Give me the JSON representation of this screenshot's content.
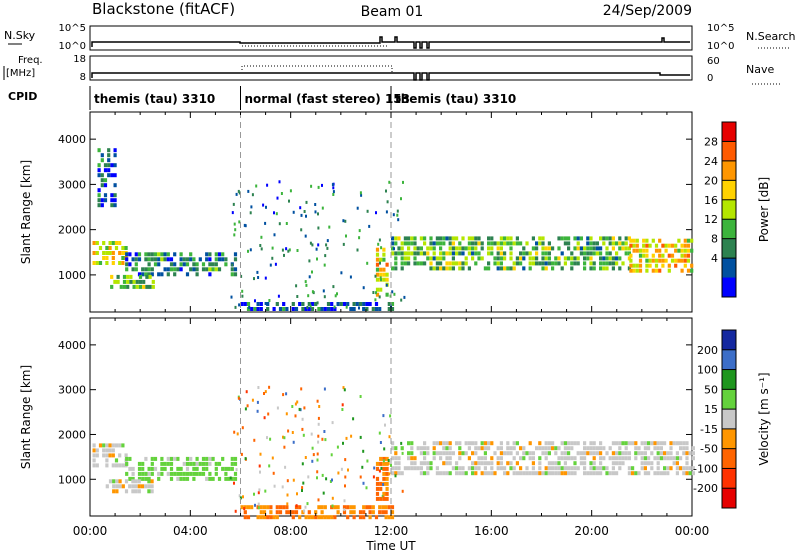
{
  "header": {
    "title": "Blackstone (fitACF)",
    "beam": "Beam 01",
    "date": "24/Sep/2009"
  },
  "side_labels": {
    "nsky": "N.Sky",
    "freq": "Freq.",
    "freq_unit": "[MHz]",
    "cpid": "CPID",
    "nsearch": "N.Search",
    "nave": "Nave"
  },
  "noise_axis": {
    "left_ticks": [
      "10^5",
      "10^0"
    ],
    "right_ticks": [
      "10^5",
      "10^0"
    ]
  },
  "freq_axis": {
    "left_ticks": [
      "18",
      "8"
    ],
    "right_ticks": [
      "60",
      "0"
    ]
  },
  "cpid_segments": [
    {
      "label": "themis (tau) 3310",
      "start_hour": 0,
      "end_hour": 6
    },
    {
      "label": "normal (fast stereo) 153",
      "start_hour": 6,
      "end_hour": 12
    },
    {
      "label": "themis (tau) 3310",
      "start_hour": 12,
      "end_hour": 24
    }
  ],
  "chart_data": [
    {
      "type": "heatmap",
      "title": "",
      "xlabel": "",
      "ylabel": "Slant Range [km]",
      "xlim": [
        0,
        24
      ],
      "ylim": [
        180,
        4600
      ],
      "yticks": [
        1000,
        2000,
        3000,
        4000
      ],
      "colorbar": {
        "label": "Power [dB]",
        "ticks": [
          "28",
          "24",
          "20",
          "16",
          "12",
          "8",
          "4"
        ],
        "colors": [
          "#e60000",
          "#ff5a00",
          "#ff9600",
          "#ffd200",
          "#b4e600",
          "#3cb43c",
          "#2d8250",
          "#0050a0",
          "#0000ff"
        ]
      },
      "regions": [
        {
          "hour_start": 0.1,
          "hour_end": 1.4,
          "range_start": 1300,
          "range_end": 1750,
          "dB": 20
        },
        {
          "hour_start": 1.4,
          "hour_end": 5.8,
          "range_start": 1050,
          "range_end": 1500,
          "dB": 10
        },
        {
          "hour_start": 0.8,
          "hour_end": 2.5,
          "range_start": 700,
          "range_end": 1000,
          "dB": 16
        },
        {
          "hour_start": 0.3,
          "hour_end": 1.0,
          "range_start": 2500,
          "range_end": 3800,
          "dB": 6
        },
        {
          "hour_start": 11.4,
          "hour_end": 11.9,
          "range_start": 600,
          "range_end": 1600,
          "dB": 22
        },
        {
          "hour_start": 12.0,
          "hour_end": 21.5,
          "range_start": 1100,
          "range_end": 1850,
          "dB": 14
        },
        {
          "hour_start": 21.5,
          "hour_end": 24.0,
          "range_start": 1100,
          "range_end": 1800,
          "dB": 22
        },
        {
          "hour_start": 6.0,
          "hour_end": 12.0,
          "range_start": 180,
          "range_end": 400,
          "dB": 6
        }
      ]
    },
    {
      "type": "heatmap",
      "title": "",
      "xlabel": "Time UT",
      "ylabel": "Slant Range [km]",
      "xlim": [
        0,
        24
      ],
      "ylim": [
        180,
        4600
      ],
      "yticks": [
        1000,
        2000,
        3000,
        4000
      ],
      "xticks": [
        "00:00",
        "04:00",
        "08:00",
        "12:00",
        "16:00",
        "20:00",
        "00:00"
      ],
      "colorbar": {
        "label": "Velocity [m s⁻¹]",
        "ticks": [
          "200",
          "100",
          "50",
          "15",
          "-15",
          "-50",
          "-100",
          "-200"
        ],
        "colors": [
          "#1428a0",
          "#3c6ec8",
          "#1e961e",
          "#64d23c",
          "#c8c8c8",
          "#ff9600",
          "#ff6400",
          "#ff3200",
          "#e60000"
        ]
      },
      "regions": [
        {
          "hour_start": 0.1,
          "hour_end": 1.4,
          "range_start": 1300,
          "range_end": 1800,
          "velocity": 0
        },
        {
          "hour_start": 1.4,
          "hour_end": 5.8,
          "range_start": 1050,
          "range_end": 1500,
          "velocity": 30
        },
        {
          "hour_start": 0.5,
          "hour_end": 2.5,
          "range_start": 700,
          "range_end": 1000,
          "velocity": 0
        },
        {
          "hour_start": 11.4,
          "hour_end": 11.9,
          "range_start": 600,
          "range_end": 1500,
          "velocity": -50
        },
        {
          "hour_start": 12.0,
          "hour_end": 24.0,
          "range_start": 1150,
          "range_end": 1850,
          "velocity": 0
        },
        {
          "hour_start": 6.0,
          "hour_end": 12.0,
          "range_start": 180,
          "range_end": 420,
          "velocity": -50
        }
      ]
    }
  ]
}
